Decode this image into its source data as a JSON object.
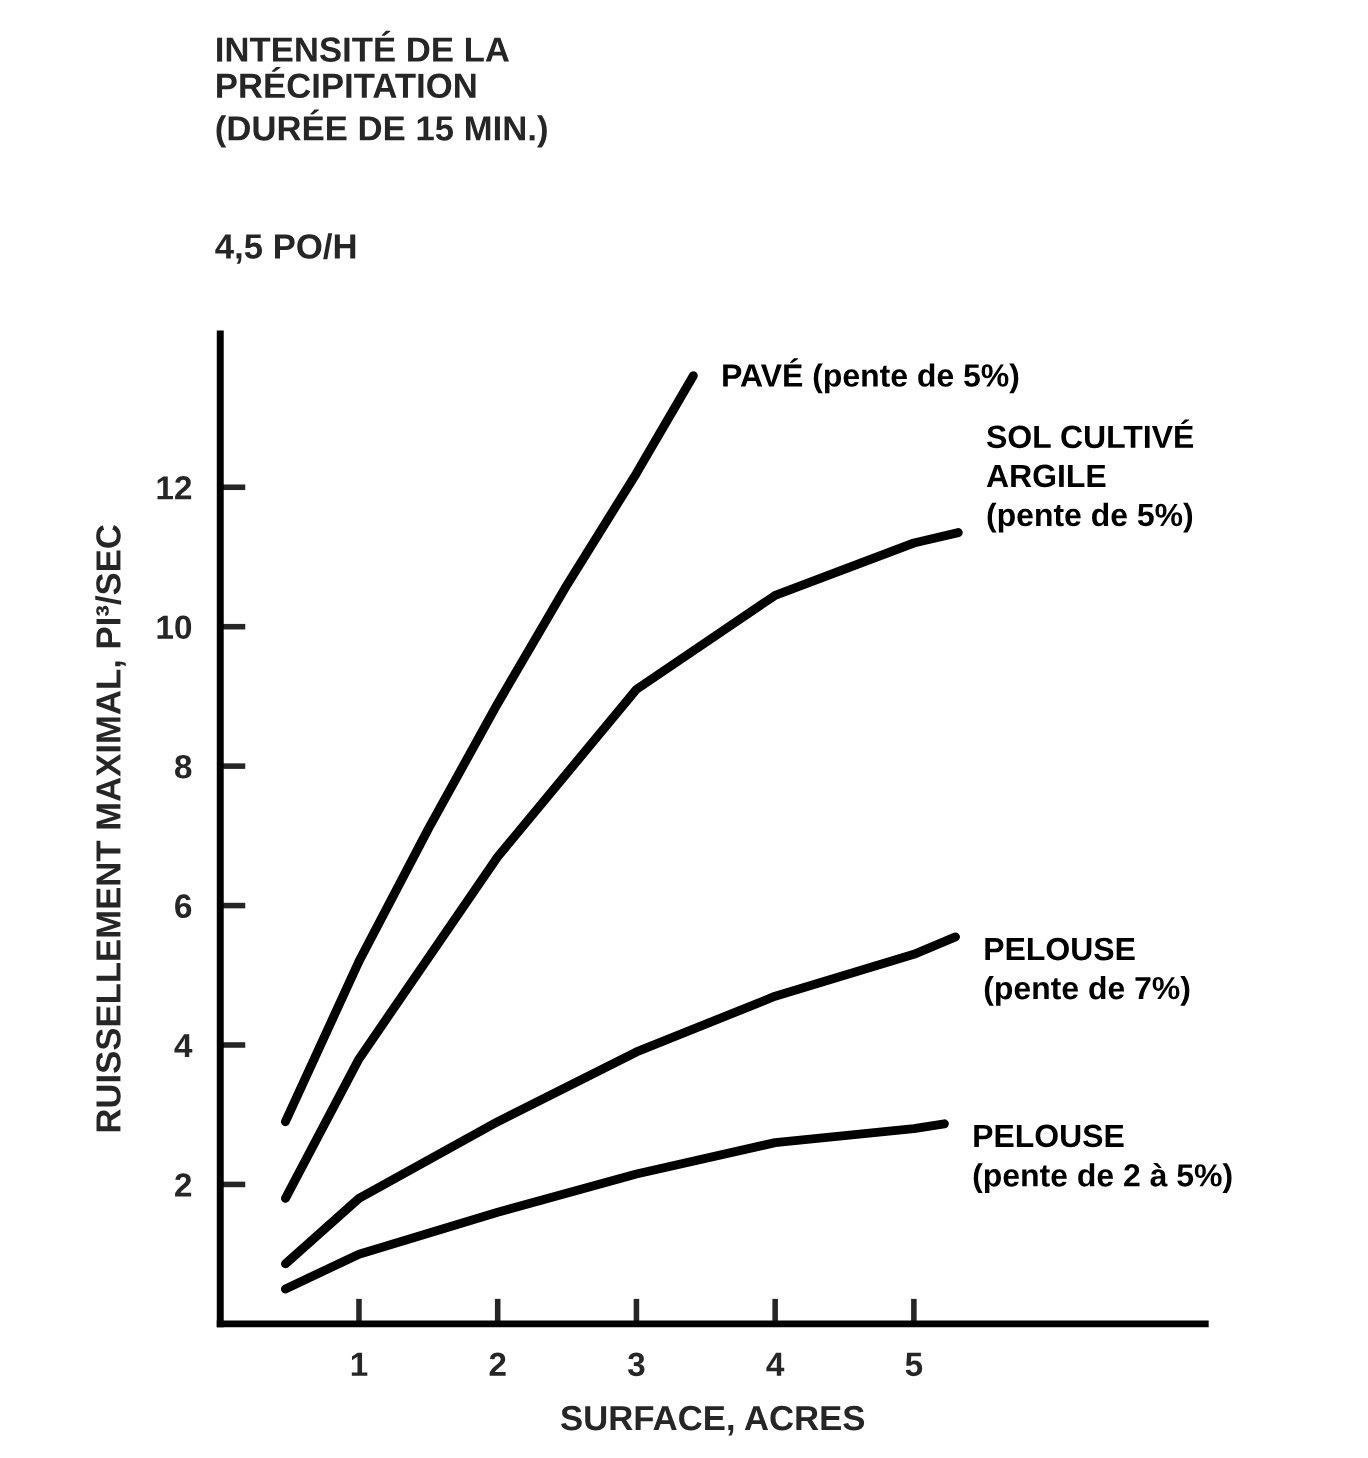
{
  "chart_data": {
    "type": "line",
    "title": "INTENSITÉ DE LA\nPRÉCIPITATION\n(DURÉE DE 15 MIN.)",
    "subtitle": "4,5 PO/H",
    "xlabel": "SURFACE, ACRES",
    "ylabel": "RUISSELLEMENT MAXIMAL, PI³/SEC",
    "xlim": [
      0,
      7.1
    ],
    "ylim": [
      0,
      14.2
    ],
    "xticks": [
      1,
      2,
      3,
      4,
      5
    ],
    "yticks": [
      2,
      4,
      6,
      8,
      10,
      12
    ],
    "grid": false,
    "legend": false,
    "marker": "none",
    "line_style": "solid",
    "series": [
      {
        "name": "PAVÉ (pente de 5%)",
        "color": "#000000",
        "x": [
          0.47,
          1,
          1.5,
          2,
          2.5,
          3,
          3.41
        ],
        "values": [
          2.9,
          5.2,
          7.1,
          8.9,
          10.6,
          12.2,
          13.6
        ]
      },
      {
        "name": "SOL CULTIVÉ\nARGILE\n(pente de 5%)",
        "color": "#000000",
        "x": [
          0.47,
          1,
          2,
          3,
          4,
          5,
          5.32
        ],
        "values": [
          1.8,
          3.8,
          6.7,
          9.1,
          10.45,
          11.2,
          11.35
        ]
      },
      {
        "name": "PELOUSE\n(pente de 7%)",
        "color": "#000000",
        "x": [
          0.47,
          1,
          2,
          3,
          4,
          5,
          5.3
        ],
        "values": [
          0.86,
          1.8,
          2.9,
          3.9,
          4.7,
          5.3,
          5.55
        ]
      },
      {
        "name": "PELOUSE\n(pente de 2 à 5%)",
        "color": "#000000",
        "x": [
          0.47,
          1,
          2,
          3,
          4,
          5,
          5.22
        ],
        "values": [
          0.5,
          1.0,
          1.6,
          2.15,
          2.6,
          2.8,
          2.87
        ]
      }
    ]
  }
}
